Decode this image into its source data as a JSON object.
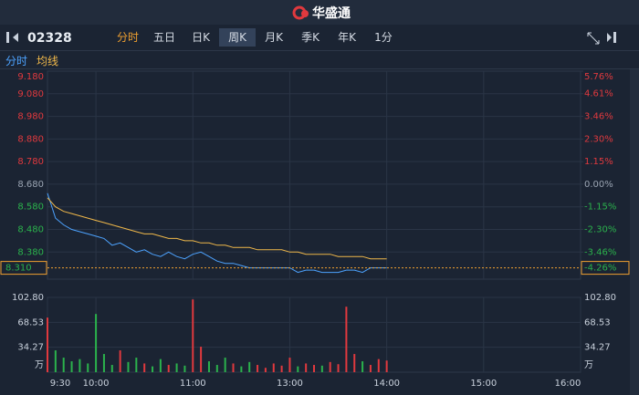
{
  "header": {
    "brand": "华盛通",
    "code": "02328",
    "tabs": [
      "分时",
      "五日",
      "日K",
      "周K",
      "月K",
      "季K",
      "年K",
      "1分"
    ]
  },
  "chart_data": [
    {
      "type": "line",
      "x": [
        "9:30",
        "9:35",
        "9:40",
        "9:45",
        "9:50",
        "9:55",
        "10:00",
        "10:05",
        "10:10",
        "10:15",
        "10:20",
        "10:25",
        "10:30",
        "10:35",
        "10:40",
        "10:45",
        "10:50",
        "10:55",
        "11:00",
        "11:05",
        "11:10",
        "11:15",
        "11:20",
        "11:25",
        "11:30",
        "11:35",
        "11:40",
        "11:45",
        "11:50",
        "11:55",
        "12:00",
        "13:00",
        "13:05",
        "13:10",
        "13:15",
        "13:20",
        "13:25",
        "13:30",
        "13:35",
        "13:40",
        "13:45",
        "13:50",
        "13:55",
        "14:00"
      ],
      "series": [
        {
          "name": "分时",
          "color": "#4da3ff",
          "values": [
            8.64,
            8.53,
            8.5,
            8.48,
            8.47,
            8.46,
            8.45,
            8.44,
            8.41,
            8.42,
            8.4,
            8.38,
            8.39,
            8.37,
            8.36,
            8.38,
            8.36,
            8.35,
            8.37,
            8.38,
            8.36,
            8.34,
            8.33,
            8.33,
            8.32,
            8.31,
            8.31,
            8.31,
            8.31,
            8.31,
            8.31,
            8.31,
            8.29,
            8.3,
            8.3,
            8.29,
            8.29,
            8.29,
            8.3,
            8.3,
            8.29,
            8.31,
            8.31,
            8.31
          ]
        },
        {
          "name": "均线",
          "color": "#f0b84a",
          "values": [
            8.62,
            8.58,
            8.56,
            8.55,
            8.54,
            8.53,
            8.52,
            8.51,
            8.5,
            8.49,
            8.48,
            8.47,
            8.46,
            8.46,
            8.45,
            8.44,
            8.44,
            8.43,
            8.43,
            8.42,
            8.42,
            8.41,
            8.41,
            8.4,
            8.4,
            8.4,
            8.39,
            8.39,
            8.39,
            8.39,
            8.38,
            8.38,
            8.38,
            8.37,
            8.37,
            8.37,
            8.37,
            8.36,
            8.36,
            8.36,
            8.36,
            8.35,
            8.35,
            8.35
          ]
        }
      ],
      "ylim": [
        8.26,
        9.18
      ],
      "yticks": [
        {
          "value": 9.18,
          "label": "9.180"
        },
        {
          "value": 9.08,
          "label": "9.080"
        },
        {
          "value": 8.98,
          "label": "8.980"
        },
        {
          "value": 8.88,
          "label": "8.880"
        },
        {
          "value": 8.78,
          "label": "8.780"
        },
        {
          "value": 8.68,
          "label": "8.680"
        },
        {
          "value": 8.58,
          "label": "8.580"
        },
        {
          "value": 8.48,
          "label": "8.480"
        },
        {
          "value": 8.38,
          "label": "8.380"
        }
      ],
      "y2lim": [
        -4.84,
        5.76
      ],
      "y2ticks": [
        {
          "value": 5.76,
          "label": "5.76%"
        },
        {
          "value": 4.61,
          "label": "4.61%"
        },
        {
          "value": 3.46,
          "label": "3.46%"
        },
        {
          "value": 2.3,
          "label": "2.30%"
        },
        {
          "value": 1.15,
          "label": "1.15%"
        },
        {
          "value": 0,
          "label": "0.00%"
        },
        {
          "value": -1.15,
          "label": "-1.15%"
        },
        {
          "value": -2.3,
          "label": "-2.30%"
        },
        {
          "value": -3.46,
          "label": "-3.46%"
        }
      ],
      "xticks": [
        "10:00",
        "11:00",
        "13:00",
        "14:00",
        "15:00"
      ],
      "last_price": {
        "value": 8.31,
        "label": "8.310"
      },
      "last_change": {
        "value": -4.26,
        "label": "-4.26%"
      }
    },
    {
      "type": "bar",
      "x": [
        "9:30",
        "9:35",
        "9:40",
        "9:45",
        "9:50",
        "9:55",
        "10:00",
        "10:05",
        "10:10",
        "10:15",
        "10:20",
        "10:25",
        "10:30",
        "10:35",
        "10:40",
        "10:45",
        "10:50",
        "10:55",
        "11:00",
        "11:05",
        "11:10",
        "11:15",
        "11:20",
        "11:25",
        "11:30",
        "11:35",
        "11:40",
        "11:45",
        "11:50",
        "11:55",
        "12:00",
        "13:00",
        "13:05",
        "13:10",
        "13:15",
        "13:20",
        "13:25",
        "13:30",
        "13:35",
        "13:40",
        "13:45",
        "13:50",
        "13:55",
        "14:00"
      ],
      "values": [
        75,
        30,
        20,
        15,
        18,
        12,
        80,
        25,
        10,
        30,
        14,
        20,
        12,
        8,
        18,
        10,
        12,
        9,
        100,
        35,
        15,
        10,
        20,
        12,
        8,
        14,
        10,
        6,
        12,
        9,
        7,
        20,
        8,
        12,
        10,
        9,
        14,
        11,
        90,
        25,
        15,
        10,
        18,
        16
      ],
      "color_up": "#e0393e",
      "color_down": "#2bb24c",
      "unit": "万",
      "ylim": [
        0,
        102.8
      ],
      "yticks": [
        {
          "value": 102.8,
          "label": "102.80"
        },
        {
          "value": 68.53,
          "label": "68.53"
        },
        {
          "value": 34.27,
          "label": "34.27"
        }
      ],
      "xticks": [
        "9:30",
        "10:00",
        "11:00",
        "13:00",
        "14:00",
        "15:00",
        "16:00"
      ]
    }
  ]
}
